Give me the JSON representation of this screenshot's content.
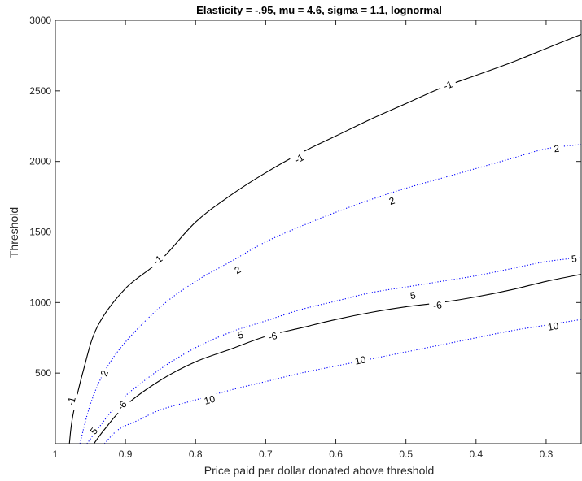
{
  "chart_data": {
    "type": "line",
    "title": "Elasticity = -.95, mu = 4.6, sigma = 1.1, lognormal",
    "xlabel": "Price paid per dollar donated above threshold",
    "ylabel": "Threshold",
    "xlim": [
      1,
      0.25
    ],
    "x_reversed": true,
    "ylim": [
      0,
      3000
    ],
    "grid": false,
    "legend": "none",
    "xticks": [
      1,
      0.9,
      0.8,
      0.7,
      0.6,
      0.5,
      0.4,
      0.3
    ],
    "xtick_labels": [
      "1",
      "0.9",
      "0.8",
      "0.7",
      "0.6",
      "0.5",
      "0.4",
      "0.3"
    ],
    "yticks": [
      500,
      1000,
      1500,
      2000,
      2500,
      3000
    ],
    "ytick_labels": [
      "500",
      "1000",
      "1500",
      "2000",
      "2500",
      "3000"
    ],
    "series": [
      {
        "level": "-1",
        "style": "solid",
        "color": "#000000",
        "x": [
          0.98,
          0.975,
          0.96,
          0.94,
          0.9,
          0.85,
          0.8,
          0.75,
          0.7,
          0.65,
          0.6,
          0.55,
          0.5,
          0.45,
          0.4,
          0.35,
          0.3,
          0.25
        ],
        "y": [
          0,
          200,
          520,
          830,
          1100,
          1300,
          1570,
          1760,
          1920,
          2060,
          2180,
          2300,
          2410,
          2520,
          2610,
          2700,
          2800,
          2900
        ],
        "labels": [
          {
            "x": 0.977,
            "y": 300,
            "text": "-1"
          },
          {
            "x": 0.854,
            "y": 1300,
            "text": "-1"
          },
          {
            "x": 0.652,
            "y": 2020,
            "text": "-1"
          },
          {
            "x": 0.44,
            "y": 2540,
            "text": "-1"
          }
        ]
      },
      {
        "level": "2",
        "style": "dotted",
        "color": "#0000ff",
        "x": [
          0.965,
          0.95,
          0.93,
          0.9,
          0.85,
          0.8,
          0.75,
          0.7,
          0.65,
          0.6,
          0.55,
          0.5,
          0.45,
          0.4,
          0.35,
          0.3,
          0.25
        ],
        "y": [
          0,
          280,
          510,
          720,
          970,
          1150,
          1290,
          1430,
          1540,
          1640,
          1730,
          1810,
          1880,
          1950,
          2020,
          2090,
          2120
        ],
        "labels": [
          {
            "x": 0.93,
            "y": 500,
            "text": "2"
          },
          {
            "x": 0.74,
            "y": 1230,
            "text": "2"
          },
          {
            "x": 0.52,
            "y": 1720,
            "text": "2"
          },
          {
            "x": 0.285,
            "y": 2090,
            "text": "2"
          }
        ]
      },
      {
        "level": "5",
        "style": "dotted",
        "color": "#0000ff",
        "x": [
          0.955,
          0.94,
          0.92,
          0.9,
          0.85,
          0.8,
          0.75,
          0.7,
          0.65,
          0.6,
          0.55,
          0.5,
          0.45,
          0.4,
          0.35,
          0.3,
          0.25
        ],
        "y": [
          0,
          100,
          230,
          340,
          530,
          680,
          790,
          870,
          950,
          1010,
          1070,
          1110,
          1150,
          1190,
          1240,
          1290,
          1320
        ],
        "labels": [
          {
            "x": 0.945,
            "y": 90,
            "text": "5"
          },
          {
            "x": 0.736,
            "y": 770,
            "text": "5"
          },
          {
            "x": 0.49,
            "y": 1050,
            "text": "5"
          },
          {
            "x": 0.26,
            "y": 1310,
            "text": "5"
          }
        ]
      },
      {
        "level": "-6",
        "style": "solid",
        "color": "#000000",
        "x": [
          0.945,
          0.93,
          0.9,
          0.85,
          0.8,
          0.75,
          0.7,
          0.65,
          0.6,
          0.55,
          0.5,
          0.45,
          0.4,
          0.35,
          0.3,
          0.25
        ],
        "y": [
          0,
          100,
          270,
          450,
          580,
          670,
          760,
          820,
          880,
          930,
          970,
          1000,
          1040,
          1090,
          1150,
          1200
        ],
        "labels": [
          {
            "x": 0.905,
            "y": 270,
            "text": "-6"
          },
          {
            "x": 0.69,
            "y": 760,
            "text": "-6"
          },
          {
            "x": 0.455,
            "y": 980,
            "text": "-6"
          }
        ]
      },
      {
        "level": "10",
        "style": "dotted",
        "color": "#0000ff",
        "x": [
          0.93,
          0.91,
          0.88,
          0.85,
          0.8,
          0.75,
          0.7,
          0.65,
          0.6,
          0.55,
          0.5,
          0.45,
          0.4,
          0.35,
          0.3,
          0.25
        ],
        "y": [
          0,
          100,
          170,
          240,
          310,
          380,
          440,
          500,
          550,
          600,
          650,
          700,
          750,
          800,
          840,
          880
        ],
        "labels": [
          {
            "x": 0.78,
            "y": 310,
            "text": "10"
          },
          {
            "x": 0.565,
            "y": 590,
            "text": "10"
          },
          {
            "x": 0.29,
            "y": 830,
            "text": "10"
          }
        ]
      }
    ]
  }
}
